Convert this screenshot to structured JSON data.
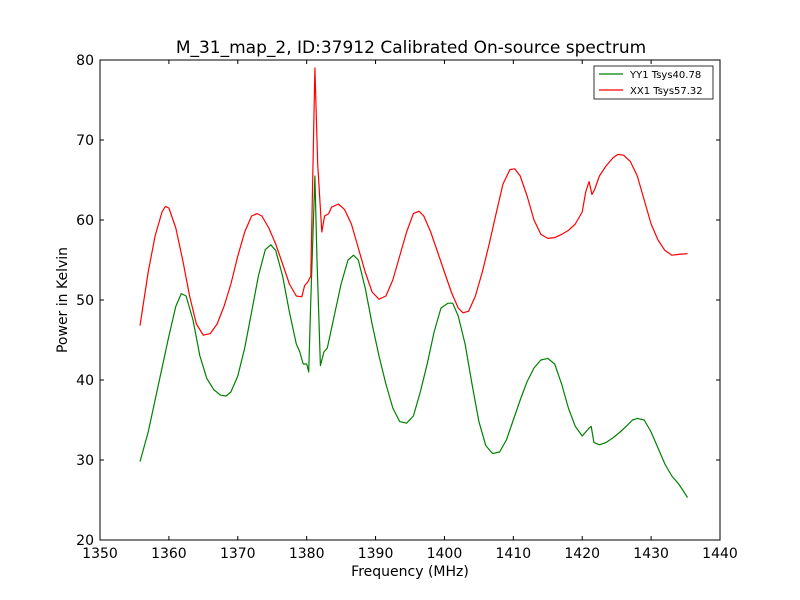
{
  "chart_data": {
    "type": "line",
    "title": "M_31_map_2, ID:37912 Calibrated On-source spectrum",
    "xlabel": "Frequency (MHz)",
    "ylabel": "Power in Kelvin",
    "xlim": [
      1350,
      1440
    ],
    "ylim": [
      20,
      80
    ],
    "xticks": [
      "1350",
      "1360",
      "1370",
      "1380",
      "1390",
      "1400",
      "1410",
      "1420",
      "1430",
      "1440"
    ],
    "yticks": [
      "20",
      "30",
      "40",
      "50",
      "60",
      "70",
      "80"
    ],
    "grid": false,
    "legend_position": "top-right",
    "series": [
      {
        "name": "YY1 Tsys40.78",
        "color": "#008000",
        "x": [
          1355.8,
          1357,
          1358,
          1359,
          1360,
          1361,
          1361.8,
          1362.5,
          1363.5,
          1364.5,
          1365.5,
          1366.5,
          1367.5,
          1368.3,
          1369,
          1370,
          1371,
          1372,
          1373,
          1374,
          1374.8,
          1375.5,
          1376.5,
          1377.5,
          1378.5,
          1379,
          1379.5,
          1380,
          1380.3,
          1380.6,
          1381.2,
          1381.5,
          1382,
          1382.5,
          1383,
          1384,
          1385,
          1386,
          1386.8,
          1387.5,
          1388.5,
          1389.5,
          1390.5,
          1391.5,
          1392.5,
          1393.5,
          1394.5,
          1395.5,
          1396.5,
          1397.5,
          1398.5,
          1399.5,
          1400.5,
          1401.2,
          1402,
          1403,
          1404,
          1405,
          1406,
          1407,
          1408,
          1409,
          1410,
          1411,
          1412,
          1413,
          1414,
          1415,
          1416,
          1417,
          1418,
          1419,
          1420,
          1421,
          1421.3,
          1421.7,
          1422.5,
          1423.5,
          1424.5,
          1425.5,
          1426.5,
          1427.3,
          1428,
          1429,
          1430,
          1431,
          1432,
          1433,
          1434,
          1435.3
        ],
        "y": [
          29.8,
          33.5,
          37.5,
          41.5,
          45.5,
          49.2,
          50.8,
          50.5,
          47.5,
          43.0,
          40.2,
          38.8,
          38.1,
          38.0,
          38.5,
          40.5,
          44.0,
          48.5,
          53.0,
          56.3,
          56.9,
          56.2,
          53.0,
          48.5,
          44.5,
          43.5,
          42.0,
          42.0,
          41.0,
          50.0,
          65.5,
          55.0,
          41.8,
          43.5,
          44.0,
          48.0,
          52.0,
          55.0,
          55.6,
          55.0,
          51.5,
          47.0,
          43.0,
          39.5,
          36.5,
          34.8,
          34.6,
          35.5,
          38.5,
          42.0,
          46.0,
          49.0,
          49.6,
          49.6,
          48.0,
          44.5,
          39.5,
          34.8,
          31.8,
          30.8,
          31.0,
          32.5,
          35.0,
          37.5,
          39.8,
          41.5,
          42.5,
          42.7,
          42.0,
          39.5,
          36.5,
          34.2,
          33.0,
          34.0,
          34.2,
          32.2,
          31.9,
          32.2,
          32.8,
          33.5,
          34.3,
          35.0,
          35.2,
          35.0,
          33.5,
          31.5,
          29.5,
          28.0,
          27.0,
          25.3
        ]
      },
      {
        "name": "XX1 Tsys57.32",
        "color": "#ff0000",
        "x": [
          1355.8,
          1357,
          1358,
          1359,
          1359.5,
          1360,
          1361,
          1362,
          1363,
          1364,
          1365,
          1366,
          1367,
          1368,
          1369,
          1370,
          1371,
          1372,
          1372.8,
          1373.5,
          1374.5,
          1375.5,
          1376.5,
          1377.5,
          1378.5,
          1379.3,
          1379.7,
          1380.2,
          1380.6,
          1381.2,
          1381.6,
          1382.2,
          1382.6,
          1383.2,
          1383.6,
          1384.6,
          1385.5,
          1386.5,
          1387.5,
          1388.5,
          1389.5,
          1390.5,
          1391.5,
          1392.5,
          1393.5,
          1394.5,
          1395.5,
          1396.3,
          1397,
          1398,
          1399,
          1400,
          1401,
          1402,
          1402.7,
          1403.5,
          1404.5,
          1405.5,
          1406.5,
          1407.5,
          1408.5,
          1409.5,
          1410.2,
          1411,
          1412,
          1413,
          1414,
          1415,
          1416,
          1417,
          1418,
          1419,
          1420,
          1420.5,
          1421,
          1421.4,
          1421.8,
          1422.5,
          1423.5,
          1424.5,
          1425.2,
          1426,
          1427,
          1428,
          1429,
          1430,
          1431,
          1432,
          1433,
          1434,
          1435.3
        ],
        "y": [
          46.8,
          53.5,
          58.0,
          61.0,
          61.7,
          61.5,
          59.0,
          55.0,
          50.5,
          47.0,
          45.6,
          45.8,
          47.0,
          49.2,
          52.0,
          55.5,
          58.5,
          60.5,
          60.8,
          60.5,
          59.0,
          57.0,
          54.5,
          52.0,
          50.5,
          50.4,
          51.8,
          52.3,
          53.0,
          79.0,
          67.0,
          58.5,
          60.5,
          60.8,
          61.6,
          62.0,
          61.3,
          59.5,
          56.5,
          53.5,
          51.0,
          50.1,
          50.5,
          52.5,
          55.5,
          58.5,
          60.8,
          61.1,
          60.5,
          58.5,
          56.0,
          53.5,
          51.0,
          49.0,
          48.4,
          48.6,
          50.5,
          53.5,
          57.0,
          60.8,
          64.5,
          66.3,
          66.4,
          65.5,
          63.0,
          60.0,
          58.2,
          57.7,
          57.8,
          58.2,
          58.7,
          59.5,
          61.0,
          63.5,
          64.8,
          63.2,
          63.8,
          65.5,
          66.8,
          67.8,
          68.2,
          68.1,
          67.3,
          65.5,
          62.5,
          59.5,
          57.5,
          56.2,
          55.6,
          55.7,
          55.8
        ]
      }
    ]
  }
}
